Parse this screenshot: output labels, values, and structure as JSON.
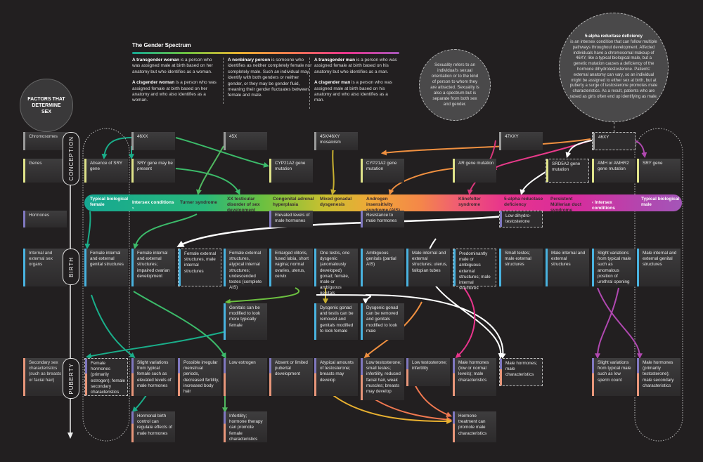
{
  "title_circle": "FACTORS THAT DETERMINE SEX",
  "spectrum_header": {
    "title": "The Gender Spectrum",
    "columns": [
      {
        "entries": [
          {
            "lead": "A transgender woman",
            "rest": " is a person who was assigned male at birth based on her anatomy but who identifies as a woman."
          },
          {
            "lead": "A cisgender woman",
            "rest": " is a person who was assigned female at birth based on her anatomy and who also identifies as a woman."
          }
        ]
      },
      {
        "entries": [
          {
            "lead": "A nonbinary person",
            "rest": " is someone who identifies as neither completely female nor completely male. Such an individual may identify with both genders or neither gender, or they may be gender fluid, meaning their gender fluctuates between female and male."
          }
        ]
      },
      {
        "entries": [
          {
            "lead": "A transgender man",
            "rest": " is a person who was assigned female at birth based on his anatomy but who identifies as a man."
          },
          {
            "lead": "A cisgender man",
            "rest": " is a person who was assigned male at birth based on his anatomy and who also identifies as a man."
          }
        ]
      }
    ]
  },
  "sexuality_bubble": "Sexuality refers to an individual's sexual orientation or to the kind of person to whom they are attracted. Sexuality is also a spectrum but is separate from both sex and gender.",
  "srd_bubble": {
    "lead": "5-alpha reductase deficiency",
    "rest": "is an intersex condition that can follow multiple pathways throughout development. Affected individuals have a chromosomal makeup of 46XY, like a typical biological male, but a genetic mutation causes a deficiency of the hormone dihydrotestosterone. Patients' external anatomy can vary, so an individual might be assigned to either sex at birth, but at puberty a surge of testosterone promotes male characteristics. As a result, patients who are raised as girls often end up identifying as male."
  },
  "stages": [
    "CONCEPTION",
    "BIRTH",
    "PUBERTY"
  ],
  "row_labels": {
    "chromosomes": "Chromosomes",
    "genes": "Genes",
    "hormones": "Hormones",
    "organs": "Internal and external sex organs",
    "secondary": "Secondary sex characteristics (such as breasts or facial hair)"
  },
  "colors": {
    "chromosomes": "#9a9a9a",
    "genes": "#dfe38a",
    "hormones": "#8078c0",
    "organs": "#49b3e0",
    "secondary": "#e8967a",
    "female": "#16a892",
    "male": "#a456b8"
  },
  "spectrum_labels": [
    "Typical biological female",
    "Intersex conditions ›",
    "Turner syndrome",
    "XX testicular disorder of sex development",
    "Congenital adrenal hyperplasia",
    "Mixed gonadal dysgenesis",
    "Androgen insensitivity syndrome (AIS)",
    "Klinefelter syndrome",
    "5-alpha reductase deficiency",
    "Persistent Müllerian duct syndrome",
    "‹ Intersex conditions",
    "Typical biological male"
  ],
  "chromosomes": [
    "46XX",
    "45X",
    "45X/46XY mosaicism",
    "47XXY",
    "46XY"
  ],
  "genes": [
    "Absence of SRY gene",
    "SRY gene may be present",
    "CYP21A2 gene mutation",
    "CYP21A2 gene mutation",
    "AR gene mutation",
    "SRD5A2 gene mutation",
    "AMH or AMHR2 gene mutation",
    "SRY gene"
  ],
  "hormones": [
    "Elevated levels of male hormones",
    "Resistance to male hormones",
    "Low dihydro-testosterone"
  ],
  "organs": [
    "Female internal and external genital structures",
    "Female internal and external structures; impaired ovarian development",
    "Female external structures, male internal structures",
    "Female external structures, atypical internal structures; undescended testes (complete AIS)",
    "Enlarged clitoris, fused labia, short vagina; normal ovaries, uterus, cervix",
    "One testis, one dysgenic (anomalously developed) gonad; female, male or ambiguous genitals",
    "Ambiguous genitals (partial AIS)",
    "Male internal and external structures; uterus, fallopian tubes",
    "Predominantly male or ambiguous external structures; male internal structures",
    "Small testes; male external structures",
    "Male internal and external structures",
    "Slight variations from typical male such as anomalous position of urethral opening",
    "Male internal and external genital structures"
  ],
  "modifications": [
    "Genitals can be modified to look more typically female",
    "Dysgenic gonad and testis can be removed and genitals modified to look female",
    "Dysgenic gonad can be removed and genitals modified to look male"
  ],
  "secondary": [
    "Female hormones (primarily estrogen); female secondary characteristics",
    "Slight variations from typical female such as elevated levels of male hormones",
    "Possible irregular menstrual periods, decreased fertility, increased body hair",
    "Low estrogen",
    "Absent or limited pubertal development",
    "Atypical amounts of testosterone; breasts may develop",
    "Low testosterone; small testes; infertility, reduced facial hair, weak muscles; breasts may develop",
    "Low testosterone; infertility",
    "Male hormones (low or normal levels); male characteristics",
    "Male hormones; male characteristics",
    "Slight variations from typical male such as low sperm count",
    "Male hormones (primarily testosterone); male secondary characteristics"
  ],
  "treatments": [
    "Hormonal birth control can regulate effects of male hormones",
    "Infertility; hormone therapy can promote female characteristics",
    "Hormone treatment can promote male characteristics"
  ]
}
